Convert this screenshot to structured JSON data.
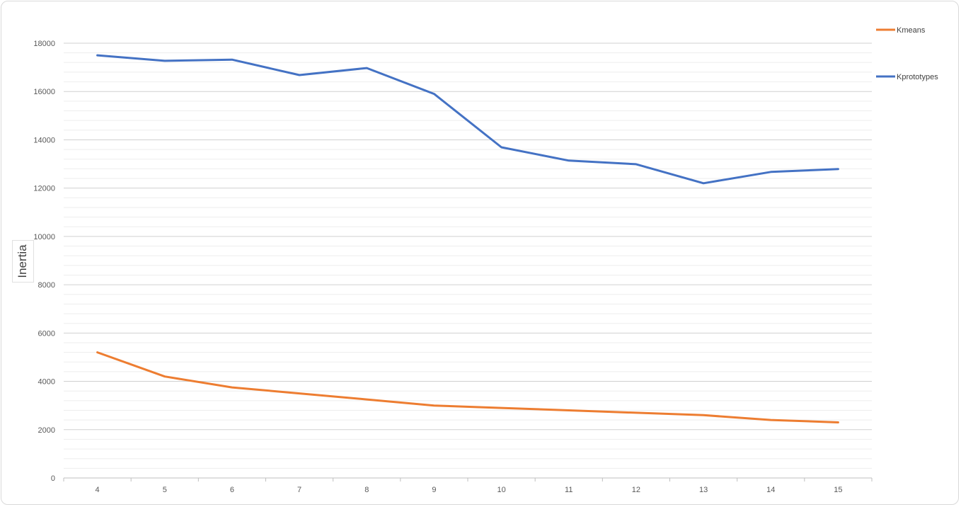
{
  "chart_data": {
    "type": "line",
    "title": "",
    "xlabel": "",
    "ylabel": "Inertia",
    "x": [
      4,
      5,
      6,
      7,
      8,
      9,
      10,
      11,
      12,
      13,
      14,
      15
    ],
    "ylim": [
      0,
      18000
    ],
    "yticks": [
      0,
      2000,
      4000,
      6000,
      8000,
      10000,
      12000,
      14000,
      16000,
      18000
    ],
    "minor_gridlines": true,
    "legend_position": "right",
    "series": [
      {
        "name": "Kmeans",
        "color": "#ED7D31",
        "values": [
          5200,
          4200,
          3750,
          3500,
          3250,
          3000,
          2900,
          2800,
          2700,
          2600,
          2400,
          2300
        ]
      },
      {
        "name": "Kprototypes",
        "color": "#4472C4",
        "values": [
          17500,
          17270,
          17320,
          16680,
          16970,
          15900,
          13690,
          13140,
          12990,
          12200,
          12670,
          12790
        ]
      }
    ]
  }
}
